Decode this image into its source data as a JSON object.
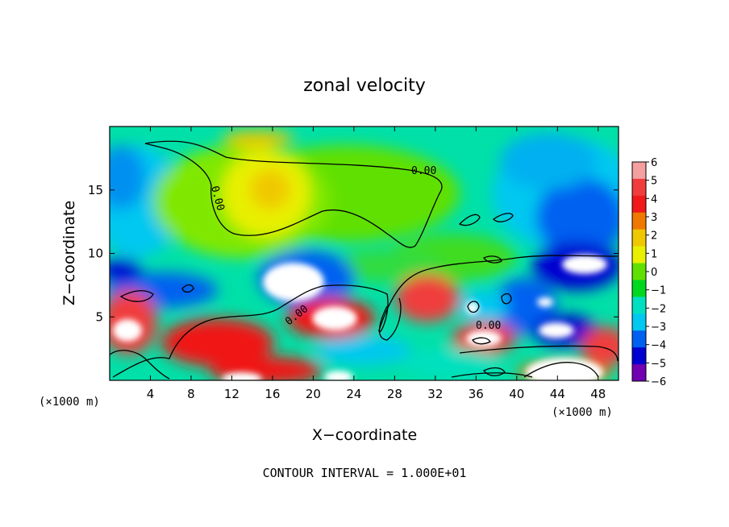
{
  "chart_data": {
    "type": "heatmap",
    "title": "zonal velocity",
    "xlabel": "X−coordinate",
    "ylabel": "Z−coordinate",
    "x_unit": "(×1000 m)",
    "y_unit": "(×1000 m)",
    "xlim": [
      0,
      50
    ],
    "ylim": [
      0,
      20
    ],
    "x_ticks": [
      4,
      8,
      12,
      16,
      20,
      24,
      28,
      32,
      36,
      40,
      44,
      48
    ],
    "y_ticks": [
      5,
      10,
      15
    ],
    "footer": "CONTOUR INTERVAL = 1.000E+01",
    "contour_label": "0.00",
    "colorbar": {
      "levels": [
        6,
        5,
        4,
        3,
        2,
        1,
        0,
        -1,
        -2,
        -3,
        -4,
        -5,
        -6
      ],
      "level_labels": [
        "6",
        "5",
        "4",
        "3",
        "2",
        "1",
        "0",
        "−1",
        "−2",
        "−3",
        "−4",
        "−5",
        "−6"
      ],
      "colors": [
        "#f4a0a0",
        "#f03c3c",
        "#f01818",
        "#f07800",
        "#f0c800",
        "#e8f000",
        "#60e000",
        "#00d820",
        "#00e0c0",
        "#00c8f0",
        "#0060f0",
        "#0000d0",
        "#7000b0"
      ]
    },
    "regions": [
      {
        "feature": "positive core (aloft)",
        "x": [
          8,
          24
        ],
        "z": [
          11,
          19.5
        ],
        "value": 2
      },
      {
        "feature": "strong positive band (low)",
        "x": [
          0,
          34
        ],
        "z": [
          0,
          6.5
        ],
        "value": 4
      },
      {
        "feature": "strong negative core",
        "x": [
          42,
          50
        ],
        "z": [
          6,
          14
        ],
        "value": -5
      },
      {
        "feature": "strong negative core",
        "x": [
          12,
          24
        ],
        "z": [
          6,
          10
        ],
        "value": -6
      },
      {
        "feature": "weak negative (upper)",
        "x": [
          0,
          10
        ],
        "z": [
          10,
          19.5
        ],
        "value": -2
      }
    ]
  }
}
